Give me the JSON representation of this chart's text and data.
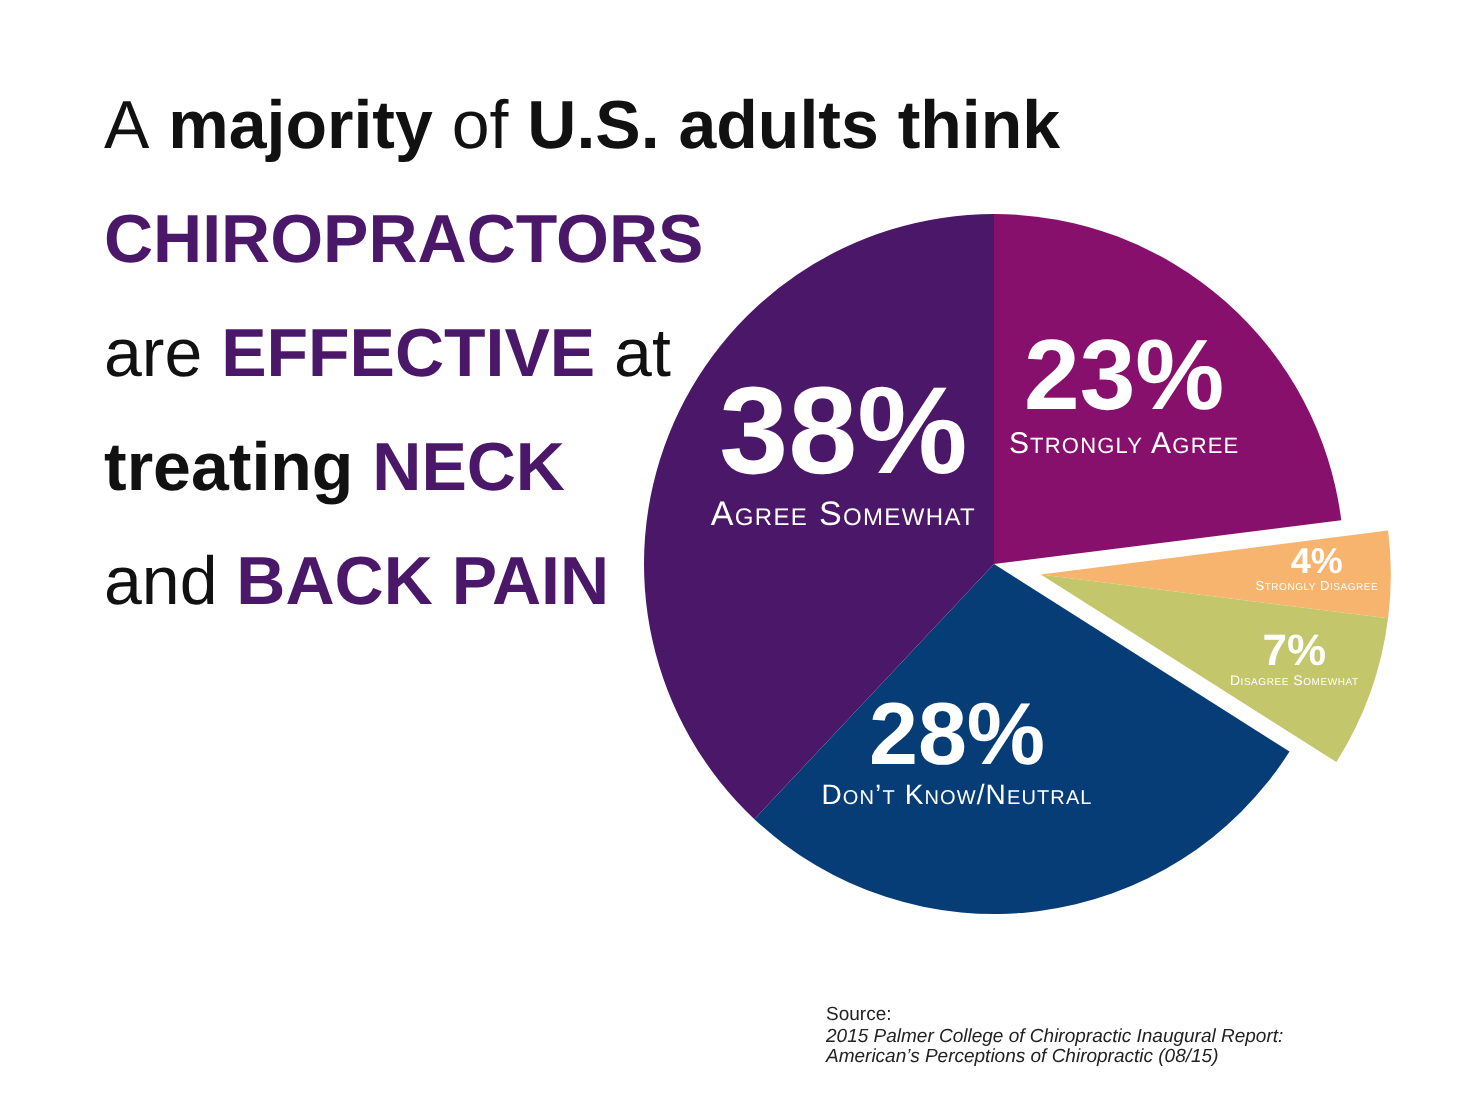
{
  "chart_data": {
    "type": "pie",
    "title": "A majority of U.S. adults think",
    "subtitle": "CHIROPRACTORS\nare EFFECTIVE at\ntreating NECK\nand BACK PAIN",
    "categories": [
      "Strongly Agree",
      "Strongly Disagree",
      "Disagree Somewhat",
      "Don’t Know/Neutral",
      "Agree Somewhat"
    ],
    "values": [
      23,
      4,
      7,
      28,
      38
    ],
    "colors": [
      "#87106c",
      "#f6b46e",
      "#c3c66b",
      "#063d76",
      "#4b1869"
    ],
    "value_labels": [
      "23%",
      "4%",
      "7%",
      "28%",
      "38%"
    ],
    "annotations": [
      "Source:\n2015 Palmer College of Chiropractic Inaugural Report:\nAmerican’s Perceptions of Chiropractic (08/15)"
    ]
  }
}
